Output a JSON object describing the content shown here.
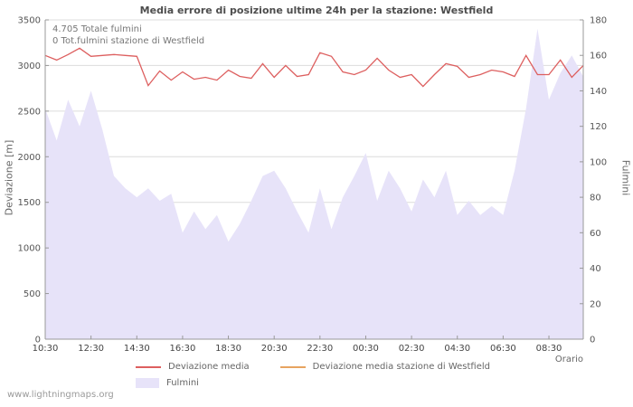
{
  "footer": "www.lightningmaps.org",
  "annotations": {
    "total": "4.705 Totale fulmini",
    "station": "0 Tot.fulmini stazione di Westfield"
  },
  "legend": [
    {
      "label": "Deviazione media",
      "type": "line",
      "color": "#dd5f5f"
    },
    {
      "label": "Deviazione media stazione di Westfield",
      "type": "line",
      "color": "#e7a460"
    },
    {
      "label": "Fulmini",
      "type": "area",
      "color": "#e7e3f9"
    }
  ],
  "chart_data": {
    "type": "line+area",
    "title": "Media errore di posizione ultime 24h per la stazione: Westfield",
    "xlabel": "Orario",
    "ylabel_left": "Deviazione [m]",
    "ylabel_right": "Fulmini",
    "left_axis": {
      "min": 0,
      "max": 3500,
      "step": 500
    },
    "right_axis": {
      "min": 0,
      "max": 180,
      "step": 20
    },
    "grid": true,
    "legend_position": "bottom",
    "x_ticks": [
      "10:30",
      "12:30",
      "14:30",
      "16:30",
      "18:30",
      "20:30",
      "22:30",
      "00:30",
      "02:30",
      "04:30",
      "06:30",
      "08:30"
    ],
    "x_tick_indices": [
      0,
      4,
      8,
      12,
      16,
      20,
      24,
      28,
      32,
      36,
      40,
      44
    ],
    "series": [
      {
        "name": "Deviazione media",
        "axis": "left",
        "type": "line",
        "color": "#dd5f5f",
        "values": [
          3110,
          3060,
          3120,
          3190,
          3100,
          3110,
          3120,
          3110,
          3100,
          2780,
          2940,
          2840,
          2930,
          2850,
          2870,
          2840,
          2950,
          2880,
          2860,
          3020,
          2870,
          3000,
          2880,
          2900,
          3140,
          3100,
          2930,
          2900,
          2950,
          3080,
          2950,
          2870,
          2900,
          2770,
          2900,
          3020,
          2990,
          2870,
          2900,
          2950,
          2930,
          2880,
          3110,
          2900,
          2900,
          3060,
          2870,
          3000
        ]
      },
      {
        "name": "Deviazione media stazione di Westfield",
        "axis": "left",
        "type": "line",
        "color": "#e7a460",
        "values": []
      },
      {
        "name": "Fulmini",
        "axis": "right",
        "type": "area",
        "color": "#e7e3f9",
        "values": [
          130,
          112,
          135,
          120,
          140,
          118,
          92,
          85,
          80,
          85,
          78,
          82,
          60,
          72,
          62,
          70,
          55,
          65,
          78,
          92,
          95,
          85,
          72,
          60,
          85,
          62,
          80,
          92,
          105,
          78,
          95,
          85,
          72,
          90,
          80,
          95,
          70,
          78,
          70,
          75,
          70,
          95,
          130,
          175,
          135,
          150,
          160,
          148
        ]
      }
    ]
  }
}
